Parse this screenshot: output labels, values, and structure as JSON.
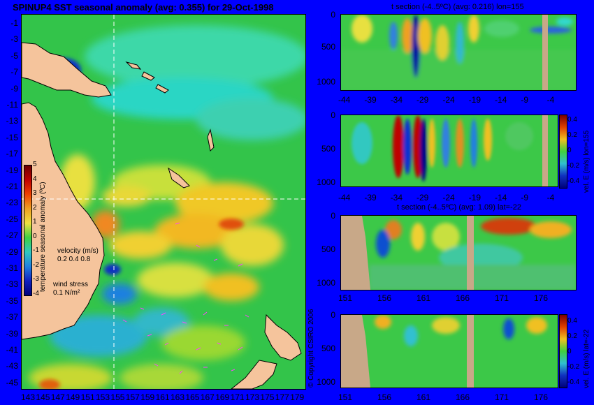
{
  "map": {
    "title": "SPINUP4 SST seasonal anomaly (avg: 0.355) for 29-Oct-1998",
    "lat_labels": [
      "-1",
      "-3",
      "-5",
      "-7",
      "-9",
      "-11",
      "-13",
      "-15",
      "-17",
      "-19",
      "-21",
      "-23",
      "-25",
      "-27",
      "-29",
      "-31",
      "-33",
      "-35",
      "-37",
      "-39",
      "-41",
      "-43",
      "-45"
    ],
    "lon_labels": [
      "143",
      "145",
      "147",
      "149",
      "151",
      "153",
      "155",
      "157",
      "159",
      "161",
      "163",
      "165",
      "167",
      "169",
      "171",
      "173",
      "175",
      "177",
      "179"
    ],
    "colorbar_label": "temperature seasonal anomaly (ºC)",
    "colorbar_ticks": [
      "5",
      "4",
      "3",
      "2",
      "1",
      "0",
      "-1",
      "-2",
      "-3",
      "-4"
    ],
    "velocity_label": "velocity (m/s)",
    "velocity_scale": "0.2 0.4 0.8",
    "wind_label": "wind stress",
    "wind_scale": "0.1 N/m²",
    "copyright": "© Copyright CSIRO 2006",
    "colors": {
      "land": "#f5c49c",
      "background": "#0000ff",
      "crosshair": "#ffffff",
      "vectors": "#ff44ff"
    }
  },
  "panels": [
    {
      "title": "t section (-4..5ºC) (avg: 0.216) lon=155",
      "x_ticks": [
        "-44",
        "-39",
        "-34",
        "-29",
        "-24",
        "-19",
        "-14",
        "-9",
        "-4"
      ],
      "y_ticks": [
        "0",
        "500",
        "1000"
      ]
    },
    {
      "title": "",
      "x_ticks": [
        "-44",
        "-39",
        "-34",
        "-29",
        "-24",
        "-19",
        "-14",
        "-9",
        "-4"
      ],
      "y_ticks": [
        "0",
        "500",
        "1000"
      ],
      "colorbar_label": "vel. E (m/s) lon=155",
      "colorbar_ticks": [
        "0.4",
        "0.2",
        "0",
        "-0.2",
        "-0.4"
      ]
    },
    {
      "title": "t section (-4..5ºC) (avg: 1.09) lat=-22",
      "x_ticks": [
        "151",
        "156",
        "161",
        "166",
        "171",
        "176"
      ],
      "y_ticks": [
        "0",
        "500",
        "1000"
      ]
    },
    {
      "title": "",
      "x_ticks": [
        "151",
        "156",
        "161",
        "166",
        "171",
        "176"
      ],
      "y_ticks": [
        "0",
        "500",
        "1000"
      ],
      "colorbar_label": "vel. E (m/s) lat=-22",
      "colorbar_ticks": [
        "0.4",
        "0.2",
        "0",
        "-0.2",
        "-0.4"
      ]
    }
  ]
}
